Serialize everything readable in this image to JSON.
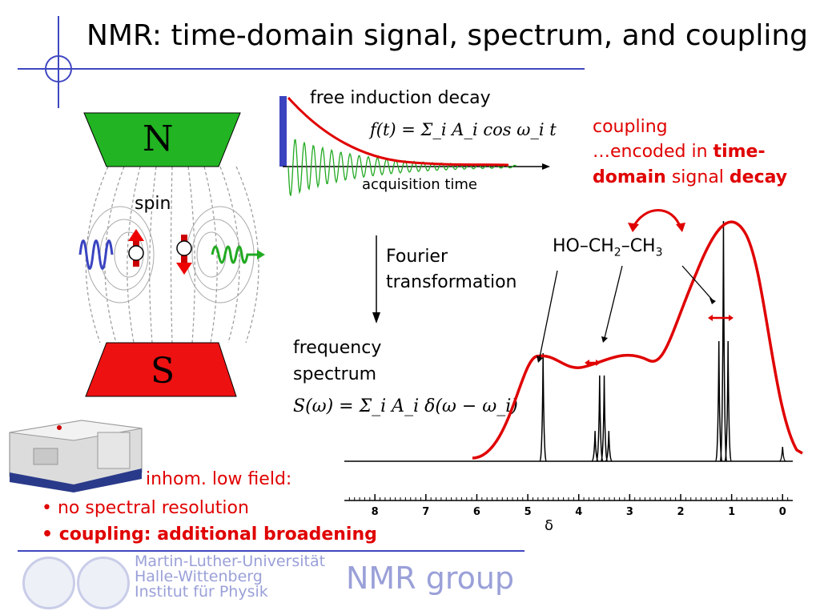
{
  "slide": {
    "title": "NMR: time-domain signal, spectrum, and coupling"
  },
  "magnet": {
    "north": "N",
    "south": "S",
    "spin_label": "spin"
  },
  "fid": {
    "label": "free induction decay",
    "formula": "f(t) = Σ_i A_i cos ω_i t",
    "x_label": "acquisition time"
  },
  "fourier": {
    "line1": "Fourier",
    "line2": "transformation"
  },
  "spectrum": {
    "label_line1": "frequency",
    "label_line2": "spectrum",
    "formula": "S(ω) = Σ_i A_i δ(ω − ω_i)",
    "molecule": "HO–CH2–CH3"
  },
  "coupling_note": {
    "line1": "coupling",
    "line2_a": "…encoded in ",
    "line2_b": "time-",
    "line3_a": "domain",
    "line3_b": " signal ",
    "line3_c": "decay"
  },
  "lowfield": {
    "heading": "inhom. low field:",
    "bullet1": "no spectral resolution",
    "bullet2": "coupling: additional broadening"
  },
  "footer": {
    "uni1": "Martin-Luther-Universität",
    "uni2": "Halle-Wittenberg",
    "uni3": "Institut für Physik",
    "group": "NMR group"
  },
  "colors": {
    "accent_blue": "#3a44c0",
    "red": "#e00000",
    "green": "#22aa22",
    "magnet_green": "#22b422",
    "magnet_red": "#ee1111"
  },
  "chart_data": {
    "type": "line",
    "xlabel": "δ",
    "xlim": [
      8.6,
      -0.2
    ],
    "tick_labels": [
      "8",
      "7",
      "6",
      "5",
      "4",
      "3",
      "2",
      "1",
      "0"
    ],
    "ticks": [
      8,
      7,
      6,
      5,
      4,
      3,
      2,
      1,
      0
    ],
    "peaks": [
      {
        "group": "OH",
        "shift": 4.7,
        "lines": [
          4.7
        ],
        "heights": [
          1.0
        ]
      },
      {
        "group": "CH2",
        "shift": 3.55,
        "lines": [
          3.68,
          3.59,
          3.5,
          3.41
        ],
        "heights": [
          0.3,
          0.85,
          0.85,
          0.3
        ]
      },
      {
        "group": "CH3",
        "shift": 1.15,
        "lines": [
          1.25,
          1.16,
          1.07
        ],
        "heights": [
          0.5,
          1.0,
          0.5
        ]
      },
      {
        "group": "ref",
        "shift": 0.0,
        "lines": [
          0.0
        ],
        "heights": [
          0.06
        ]
      }
    ],
    "broadened_envelope": {
      "description_shift_range": [
        6.0,
        -0.2
      ]
    }
  }
}
